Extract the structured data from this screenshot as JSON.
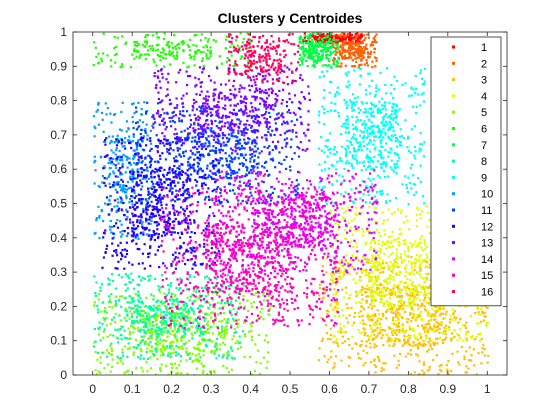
{
  "chart_data": {
    "type": "scatter",
    "title": "Clusters y Centroides",
    "xlabel": "",
    "ylabel": "",
    "xlim": [
      -0.05,
      1.05
    ],
    "ylim": [
      0,
      1
    ],
    "x_ticks": [
      "0",
      "0.1",
      "0.2",
      "0.3",
      "0.4",
      "0.5",
      "0.6",
      "0.7",
      "0.8",
      "0.9",
      "1"
    ],
    "x_tick_values": [
      0,
      0.1,
      0.2,
      0.3,
      0.4,
      0.5,
      0.6,
      0.7,
      0.8,
      0.9,
      1
    ],
    "y_ticks": [
      "0",
      "0.1",
      "0.2",
      "0.3",
      "0.4",
      "0.5",
      "0.6",
      "0.7",
      "0.8",
      "0.9",
      "1"
    ],
    "y_tick_values": [
      0,
      0.1,
      0.2,
      0.3,
      0.4,
      0.5,
      0.6,
      0.7,
      0.8,
      0.9,
      1
    ],
    "grid": false,
    "legend_position": "top-right",
    "series": [
      {
        "name": "1",
        "color": "#ff0000",
        "region": {
          "x": [
            0.53,
            0.68
          ],
          "y": [
            0.97,
            1.0
          ]
        }
      },
      {
        "name": "2",
        "color": "#ff6000",
        "region": {
          "x": [
            0.6,
            0.72
          ],
          "y": [
            0.9,
            1.0
          ]
        }
      },
      {
        "name": "3",
        "color": "#ffbf00",
        "region": {
          "x": [
            0.57,
            1.0
          ],
          "y": [
            0.0,
            0.35
          ]
        }
      },
      {
        "name": "4",
        "color": "#dfff00",
        "region": {
          "x": [
            0.6,
            1.0
          ],
          "y": [
            0.1,
            0.5
          ]
        }
      },
      {
        "name": "5",
        "color": "#80ff00",
        "region": {
          "x": [
            0.0,
            0.45
          ],
          "y": [
            0.0,
            0.25
          ]
        }
      },
      {
        "name": "6",
        "color": "#20ff00",
        "region": {
          "x": [
            0.0,
            0.4
          ],
          "y": [
            0.9,
            1.0
          ]
        }
      },
      {
        "name": "7",
        "color": "#00ff40",
        "region": {
          "x": [
            0.52,
            0.62
          ],
          "y": [
            0.9,
            1.0
          ]
        }
      },
      {
        "name": "8",
        "color": "#00ff9f",
        "region": {
          "x": [
            0.0,
            0.38
          ],
          "y": [
            0.05,
            0.3
          ]
        }
      },
      {
        "name": "9",
        "color": "#00ffff",
        "region": {
          "x": [
            0.57,
            0.84
          ],
          "y": [
            0.5,
            0.9
          ]
        }
      },
      {
        "name": "10",
        "color": "#009fff",
        "region": {
          "x": [
            0.0,
            0.15
          ],
          "y": [
            0.4,
            0.8
          ]
        }
      },
      {
        "name": "11",
        "color": "#0040ff",
        "region": {
          "x": [
            0.1,
            0.52
          ],
          "y": [
            0.5,
            0.8
          ]
        }
      },
      {
        "name": "12",
        "color": "#2000ff",
        "region": {
          "x": [
            0.02,
            0.32
          ],
          "y": [
            0.31,
            0.7
          ]
        }
      },
      {
        "name": "13",
        "color": "#8000ff",
        "region": {
          "x": [
            0.15,
            0.55
          ],
          "y": [
            0.65,
            0.9
          ]
        }
      },
      {
        "name": "14",
        "color": "#df00ff",
        "region": {
          "x": [
            0.3,
            0.72
          ],
          "y": [
            0.3,
            0.6
          ]
        }
      },
      {
        "name": "15",
        "color": "#ff00bf",
        "region": {
          "x": [
            0.17,
            0.62
          ],
          "y": [
            0.14,
            0.55
          ]
        }
      },
      {
        "name": "16",
        "color": "#ff0060",
        "region": {
          "x": [
            0.34,
            0.52
          ],
          "y": [
            0.85,
            1.0
          ]
        }
      }
    ]
  }
}
